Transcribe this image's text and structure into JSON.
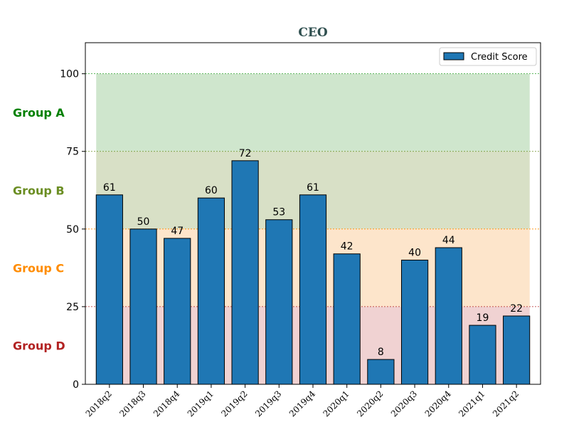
{
  "chart_data": {
    "type": "bar",
    "title": "CEO",
    "xlabel": "",
    "ylabel": "",
    "ylim": [
      0,
      110
    ],
    "yticks": [
      0,
      25,
      50,
      75,
      100
    ],
    "categories": [
      "2018q2",
      "2018q3",
      "2018q4",
      "2019q1",
      "2019q2",
      "2019q3",
      "2019q4",
      "2020q1",
      "2020q2",
      "2020q3",
      "2020q4",
      "2021q1",
      "2021q2"
    ],
    "series": [
      {
        "name": "Credit Score",
        "values": [
          61,
          50,
          47,
          60,
          72,
          53,
          61,
          42,
          8,
          40,
          44,
          19,
          22
        ],
        "color": "#1f77b4"
      }
    ],
    "legend": {
      "position": "top-right"
    },
    "bands": [
      {
        "label": "Group A",
        "from": 75,
        "to": 100,
        "color": "#2ca02c",
        "fill": "#cfe6cd",
        "text_color": "#008000"
      },
      {
        "label": "Group B",
        "from": 50,
        "to": 75,
        "color": "#6b8e23",
        "fill": "#d8e0c6",
        "text_color": "#6b8e23"
      },
      {
        "label": "Group C",
        "from": 25,
        "to": 50,
        "color": "#ff8c00",
        "fill": "#fde5cb",
        "text_color": "#ff8c00"
      },
      {
        "label": "Group D",
        "from": 0,
        "to": 25,
        "color": "#b22222",
        "fill": "#f0d2d2",
        "text_color": "#b22222"
      }
    ]
  }
}
